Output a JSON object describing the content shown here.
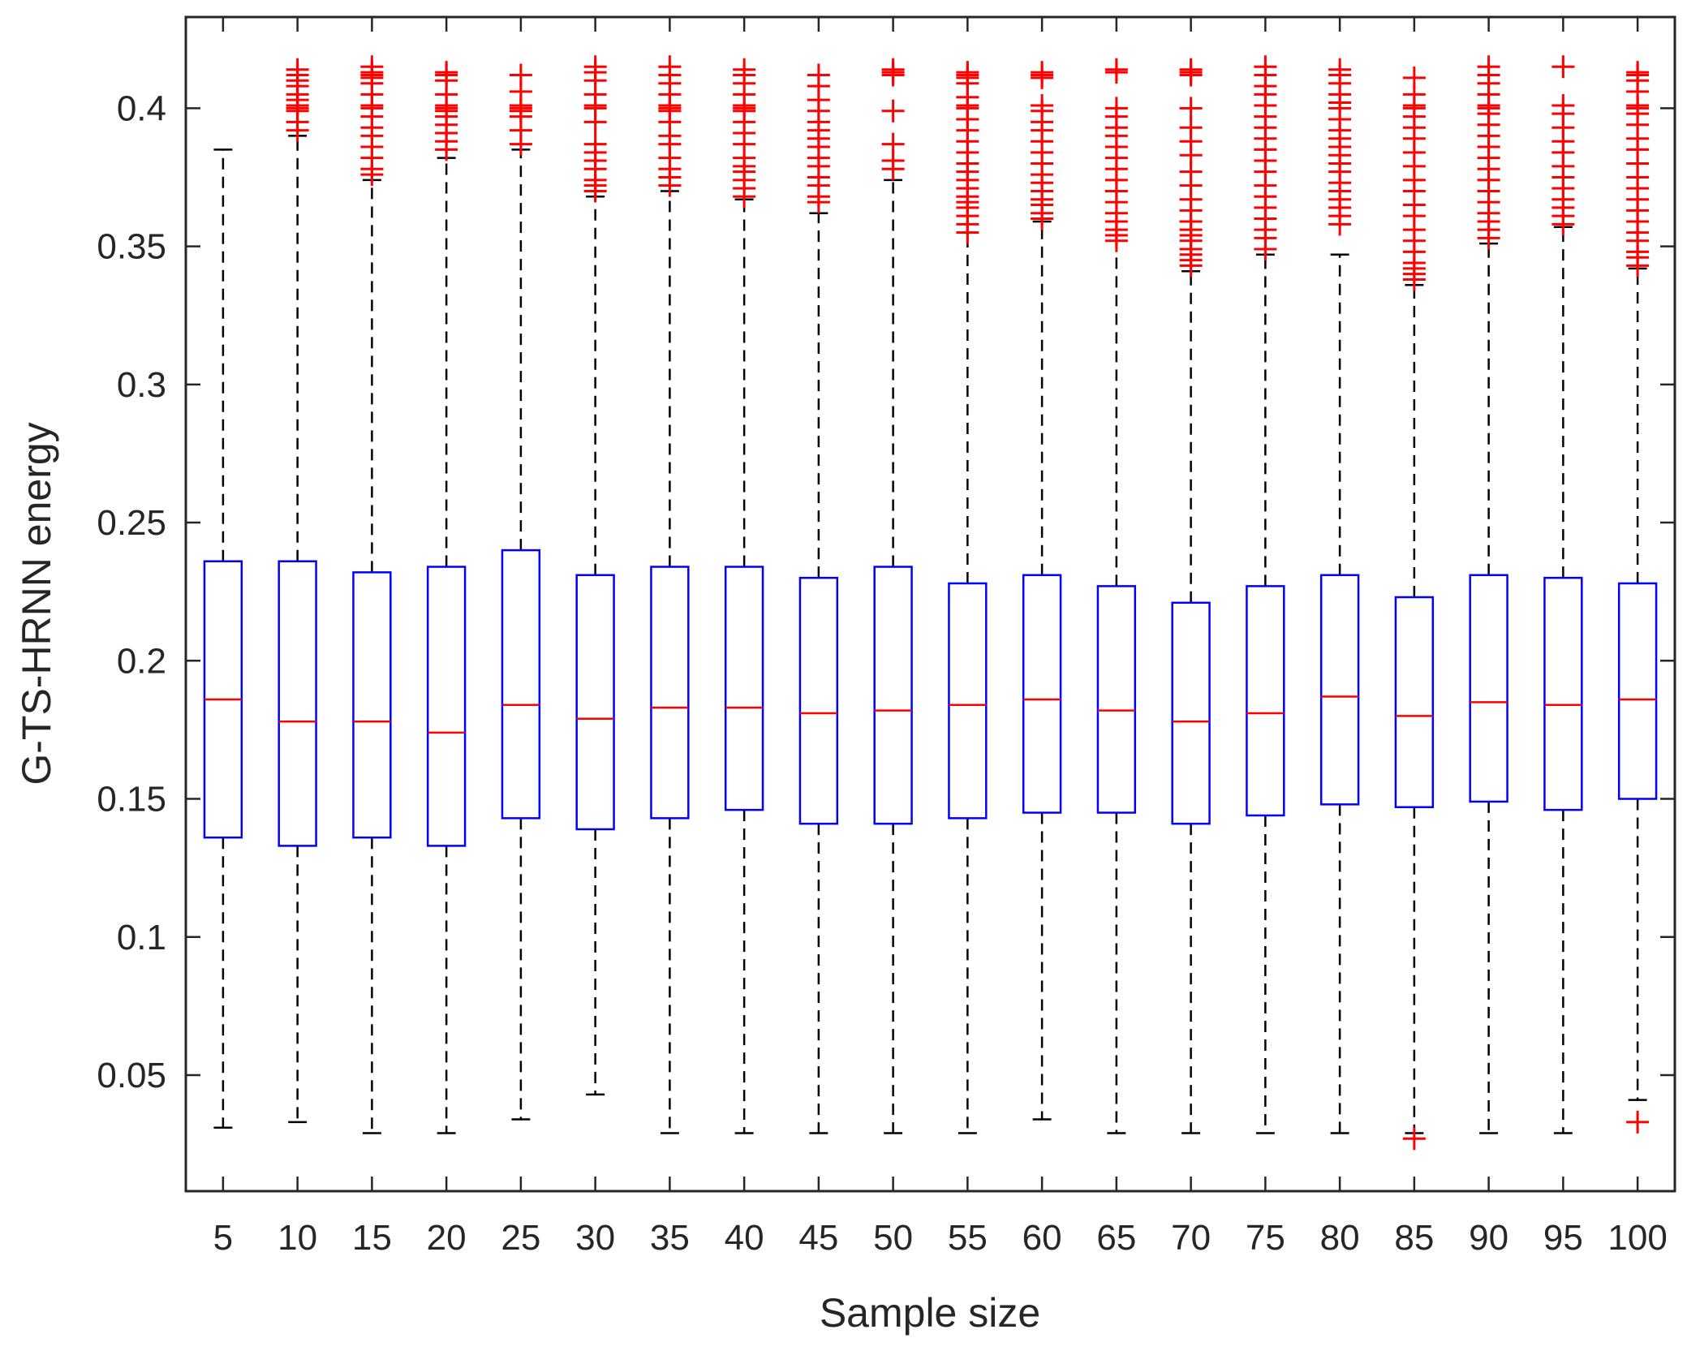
{
  "chart_data": {
    "type": "boxplot",
    "xlabel": "Sample size",
    "ylabel": "G-TS-HRNN energy",
    "ylim": [
      0.008,
      0.433
    ],
    "yticks": [
      0.05,
      0.1,
      0.15,
      0.2,
      0.25,
      0.3,
      0.35,
      0.4
    ],
    "ytick_labels": [
      "0.05",
      "0.1",
      "0.15",
      "0.2",
      "0.25",
      "0.3",
      "0.35",
      "0.4"
    ],
    "categories": [
      "5",
      "10",
      "15",
      "20",
      "25",
      "30",
      "35",
      "40",
      "45",
      "50",
      "55",
      "60",
      "65",
      "70",
      "75",
      "80",
      "85",
      "90",
      "95",
      "100"
    ],
    "colors": {
      "box": "#0000ff",
      "median": "#ff0000",
      "whisker": "#000000",
      "outlier": "#ff0000",
      "axis": "#262626"
    },
    "boxes": [
      {
        "q1": 0.136,
        "median": 0.186,
        "q3": 0.236,
        "whisker_low": 0.031,
        "whisker_high": 0.385,
        "outliers": []
      },
      {
        "q1": 0.133,
        "median": 0.178,
        "q3": 0.236,
        "whisker_low": 0.033,
        "whisker_high": 0.39,
        "outliers": [
          0.392,
          0.395,
          0.399,
          0.4,
          0.401,
          0.403,
          0.405,
          0.408,
          0.41,
          0.412,
          0.414
        ]
      },
      {
        "q1": 0.136,
        "median": 0.178,
        "q3": 0.232,
        "whisker_low": 0.029,
        "whisker_high": 0.374,
        "outliers": [
          0.376,
          0.378,
          0.382,
          0.386,
          0.39,
          0.393,
          0.397,
          0.4,
          0.401,
          0.405,
          0.409,
          0.411,
          0.412,
          0.413,
          0.415
        ]
      },
      {
        "q1": 0.133,
        "median": 0.174,
        "q3": 0.234,
        "whisker_low": 0.029,
        "whisker_high": 0.382,
        "outliers": [
          0.385,
          0.388,
          0.391,
          0.394,
          0.397,
          0.399,
          0.4,
          0.401,
          0.405,
          0.41,
          0.412,
          0.413
        ]
      },
      {
        "q1": 0.143,
        "median": 0.184,
        "q3": 0.24,
        "whisker_low": 0.034,
        "whisker_high": 0.385,
        "outliers": [
          0.387,
          0.392,
          0.397,
          0.399,
          0.4,
          0.401,
          0.406,
          0.412
        ]
      },
      {
        "q1": 0.139,
        "median": 0.179,
        "q3": 0.231,
        "whisker_low": 0.043,
        "whisker_high": 0.368,
        "outliers": [
          0.37,
          0.372,
          0.374,
          0.378,
          0.381,
          0.384,
          0.387,
          0.395,
          0.4,
          0.401,
          0.405,
          0.41,
          0.413,
          0.415
        ]
      },
      {
        "q1": 0.143,
        "median": 0.183,
        "q3": 0.234,
        "whisker_low": 0.029,
        "whisker_high": 0.37,
        "outliers": [
          0.372,
          0.375,
          0.378,
          0.382,
          0.387,
          0.39,
          0.395,
          0.399,
          0.4,
          0.401,
          0.405,
          0.409,
          0.412,
          0.415
        ]
      },
      {
        "q1": 0.146,
        "median": 0.183,
        "q3": 0.234,
        "whisker_low": 0.029,
        "whisker_high": 0.367,
        "outliers": [
          0.368,
          0.371,
          0.374,
          0.377,
          0.379,
          0.382,
          0.387,
          0.391,
          0.395,
          0.399,
          0.4,
          0.401,
          0.405,
          0.409,
          0.412,
          0.414
        ]
      },
      {
        "q1": 0.141,
        "median": 0.181,
        "q3": 0.23,
        "whisker_low": 0.029,
        "whisker_high": 0.362,
        "outliers": [
          0.366,
          0.368,
          0.372,
          0.375,
          0.379,
          0.382,
          0.386,
          0.389,
          0.392,
          0.395,
          0.399,
          0.403,
          0.408,
          0.412
        ]
      },
      {
        "q1": 0.141,
        "median": 0.182,
        "q3": 0.234,
        "whisker_low": 0.029,
        "whisker_high": 0.374,
        "outliers": [
          0.378,
          0.381,
          0.387,
          0.399,
          0.412,
          0.413,
          0.414
        ]
      },
      {
        "q1": 0.143,
        "median": 0.184,
        "q3": 0.228,
        "whisker_low": 0.029,
        "whisker_high": 0.355,
        "outliers": [
          0.355,
          0.358,
          0.361,
          0.364,
          0.366,
          0.368,
          0.371,
          0.374,
          0.377,
          0.38,
          0.384,
          0.388,
          0.392,
          0.396,
          0.4,
          0.401,
          0.404,
          0.409,
          0.411,
          0.412,
          0.413
        ]
      },
      {
        "q1": 0.145,
        "median": 0.186,
        "q3": 0.231,
        "whisker_low": 0.034,
        "whisker_high": 0.359,
        "outliers": [
          0.36,
          0.362,
          0.365,
          0.367,
          0.37,
          0.373,
          0.376,
          0.38,
          0.384,
          0.388,
          0.392,
          0.395,
          0.399,
          0.401,
          0.411,
          0.412,
          0.413
        ]
      },
      {
        "q1": 0.145,
        "median": 0.182,
        "q3": 0.227,
        "whisker_low": 0.029,
        "whisker_high": 0.352,
        "outliers": [
          0.352,
          0.354,
          0.356,
          0.359,
          0.362,
          0.366,
          0.37,
          0.374,
          0.378,
          0.382,
          0.386,
          0.39,
          0.393,
          0.397,
          0.4,
          0.413,
          0.414
        ]
      },
      {
        "q1": 0.141,
        "median": 0.178,
        "q3": 0.221,
        "whisker_low": 0.029,
        "whisker_high": 0.341,
        "outliers": [
          0.343,
          0.345,
          0.347,
          0.349,
          0.352,
          0.354,
          0.356,
          0.359,
          0.363,
          0.367,
          0.372,
          0.377,
          0.383,
          0.388,
          0.393,
          0.4,
          0.412,
          0.413,
          0.414
        ]
      },
      {
        "q1": 0.144,
        "median": 0.181,
        "q3": 0.227,
        "whisker_low": 0.029,
        "whisker_high": 0.347,
        "outliers": [
          0.349,
          0.353,
          0.356,
          0.36,
          0.364,
          0.368,
          0.372,
          0.377,
          0.381,
          0.385,
          0.389,
          0.393,
          0.397,
          0.401,
          0.405,
          0.408,
          0.412,
          0.415
        ]
      },
      {
        "q1": 0.148,
        "median": 0.187,
        "q3": 0.231,
        "whisker_low": 0.029,
        "whisker_high": 0.347,
        "outliers": [
          0.358,
          0.361,
          0.364,
          0.367,
          0.37,
          0.373,
          0.377,
          0.38,
          0.383,
          0.386,
          0.389,
          0.392,
          0.396,
          0.4,
          0.402,
          0.405,
          0.409,
          0.412,
          0.414
        ]
      },
      {
        "q1": 0.147,
        "median": 0.18,
        "q3": 0.223,
        "whisker_low": 0.029,
        "whisker_high": 0.336,
        "outliers": [
          0.027,
          0.338,
          0.34,
          0.342,
          0.344,
          0.348,
          0.352,
          0.356,
          0.361,
          0.365,
          0.37,
          0.374,
          0.379,
          0.384,
          0.389,
          0.393,
          0.397,
          0.4,
          0.401,
          0.405,
          0.411
        ]
      },
      {
        "q1": 0.149,
        "median": 0.185,
        "q3": 0.231,
        "whisker_low": 0.029,
        "whisker_high": 0.351,
        "outliers": [
          0.353,
          0.356,
          0.359,
          0.362,
          0.366,
          0.37,
          0.374,
          0.378,
          0.382,
          0.386,
          0.39,
          0.394,
          0.398,
          0.4,
          0.401,
          0.405,
          0.409,
          0.412,
          0.415
        ]
      },
      {
        "q1": 0.146,
        "median": 0.184,
        "q3": 0.23,
        "whisker_low": 0.029,
        "whisker_high": 0.357,
        "outliers": [
          0.358,
          0.361,
          0.364,
          0.367,
          0.371,
          0.375,
          0.379,
          0.384,
          0.388,
          0.393,
          0.398,
          0.401,
          0.415
        ]
      },
      {
        "q1": 0.15,
        "median": 0.186,
        "q3": 0.228,
        "whisker_low": 0.041,
        "whisker_high": 0.342,
        "outliers": [
          0.033,
          0.343,
          0.346,
          0.348,
          0.352,
          0.355,
          0.359,
          0.363,
          0.367,
          0.371,
          0.375,
          0.38,
          0.385,
          0.389,
          0.394,
          0.398,
          0.4,
          0.401,
          0.406,
          0.41,
          0.412,
          0.413
        ]
      }
    ]
  }
}
